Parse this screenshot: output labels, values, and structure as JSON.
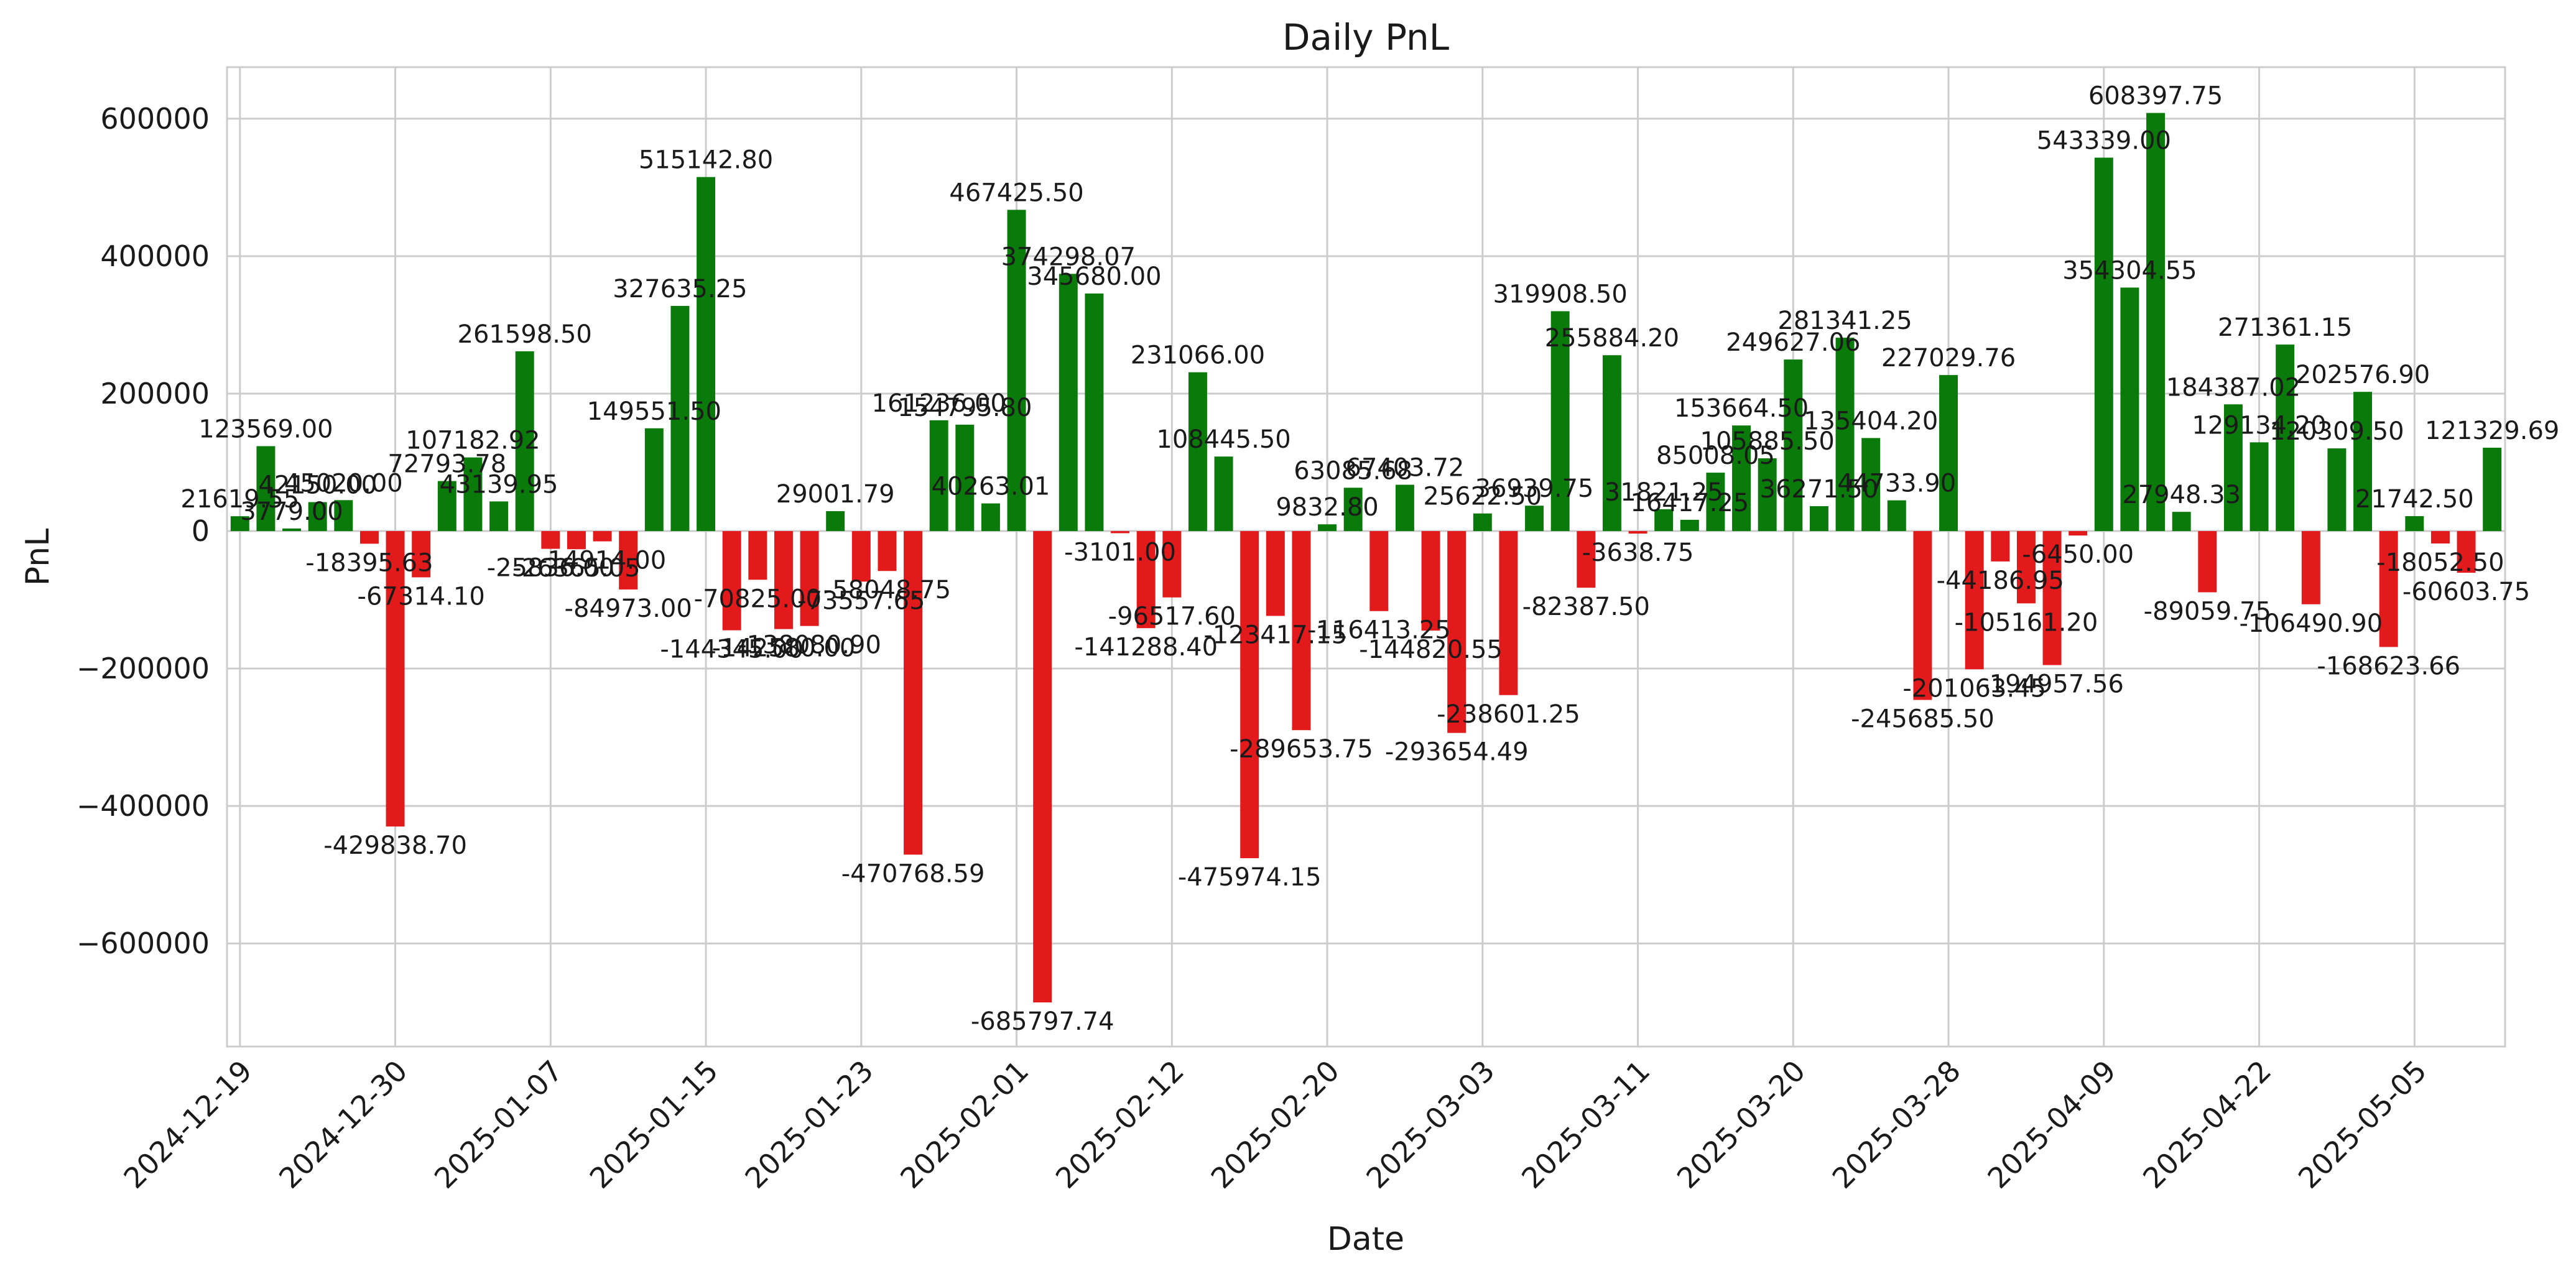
{
  "chart_data": {
    "type": "bar",
    "title": "Daily PnL",
    "xlabel": "Date",
    "ylabel": "PnL",
    "ylim": [
      -750000,
      675000
    ],
    "yticks": [
      -600000,
      -400000,
      -200000,
      0,
      200000,
      400000,
      600000
    ],
    "ytick_labels": [
      "−600000",
      "−400000",
      "−200000",
      "0",
      "200000",
      "400000",
      "600000"
    ],
    "xtick_labels": [
      "2024-12-19",
      "2024-12-30",
      "2025-01-07",
      "2025-01-15",
      "2025-01-23",
      "2025-02-01",
      "2025-02-12",
      "2025-02-20",
      "2025-03-03",
      "2025-03-11",
      "2025-03-20",
      "2025-03-28",
      "2025-04-09",
      "2025-04-22",
      "2025-05-05"
    ],
    "xtick_every": 6,
    "grid": true,
    "positive_color": "#0a7a0a",
    "negative_color": "#e31a1c",
    "values": [
      21619.55,
      123569.0,
      3779.0,
      42150.0,
      45020.0,
      -18395.63,
      -429838.7,
      -67314.1,
      72793.78,
      107182.92,
      43139.95,
      261598.5,
      -25836.0,
      -26365.05,
      -14914.0,
      -84973.0,
      149551.5,
      327635.25,
      515142.8,
      -144345.0,
      -70825.0,
      -142580.0,
      -138080.9,
      29001.79,
      -73557.65,
      -58048.75,
      -470768.59,
      161236.0,
      154795.8,
      40263.01,
      467425.5,
      -685797.74,
      374298.07,
      345680.0,
      -3101.0,
      -141288.4,
      -96517.6,
      231066.0,
      108445.5,
      -475974.15,
      -123417.15,
      -289653.75,
      9832.8,
      63085.68,
      -116413.25,
      67403.72,
      -144820.55,
      -293654.49,
      25622.5,
      -238601.25,
      36939.75,
      319908.5,
      -82387.5,
      255884.2,
      -3638.75,
      31821.25,
      16417.25,
      85008.05,
      153664.5,
      105885.5,
      249627.06,
      36271.5,
      281341.25,
      135404.2,
      44733.9,
      -245685.5,
      227029.76,
      -201063.45,
      -44186.95,
      -105161.2,
      -194957.56,
      -6450.0,
      543339.0,
      354304.55,
      608397.75,
      27948.33,
      -89059.75,
      184387.02,
      129134.2,
      271361.15,
      -106490.9,
      120309.5,
      202576.9,
      -168623.66,
      21742.5,
      -18052.5,
      -60603.75,
      121329.69
    ],
    "value_labels": [
      "21619.55",
      "123569.00",
      "3779.00",
      "42150.00",
      "45020.00",
      "-18395.63",
      "-429838.70",
      "-67314.10",
      "72793.78",
      "107182.92",
      "43139.95",
      "261598.50",
      "-25836.00",
      "-26365.05",
      "-14914.00",
      "-84973.00",
      "149551.50",
      "327635.25",
      "515142.80",
      "-144345.00",
      "-70825.00",
      "-142580.00",
      "-138080.90",
      "29001.79",
      "-73557.65",
      "-58048.75",
      "-470768.59",
      "161236.00",
      "154795.80",
      "40263.01",
      "467425.50",
      "-685797.74",
      "374298.07",
      "345680.00",
      "-3101.00",
      "-141288.40",
      "-96517.60",
      "231066.00",
      "108445.50",
      "-475974.15",
      "-123417.15",
      "-289653.75",
      "9832.80",
      "63085.68",
      "-116413.25",
      "67403.72",
      "-144820.55",
      "-293654.49",
      "25622.50",
      "-238601.25",
      "36939.75",
      "319908.50",
      "-82387.50",
      "255884.20",
      "-3638.75",
      "31821.25",
      "16417.25",
      "85008.05",
      "153664.50",
      "105885.50",
      "249627.06",
      "36271.50",
      "281341.25",
      "135404.20",
      "44733.90",
      "-245685.50",
      "227029.76",
      "-201063.45",
      "-44186.95",
      "-105161.20",
      "-194957.56",
      "-6450.00",
      "543339.00",
      "354304.55",
      "608397.75",
      "27948.33",
      "-89059.75",
      "184387.02",
      "129134.20",
      "271361.15",
      "-106490.90",
      "120309.50",
      "202576.90",
      "-168623.66",
      "21742.50",
      "-18052.50",
      "-60603.75",
      "121329.69"
    ]
  }
}
